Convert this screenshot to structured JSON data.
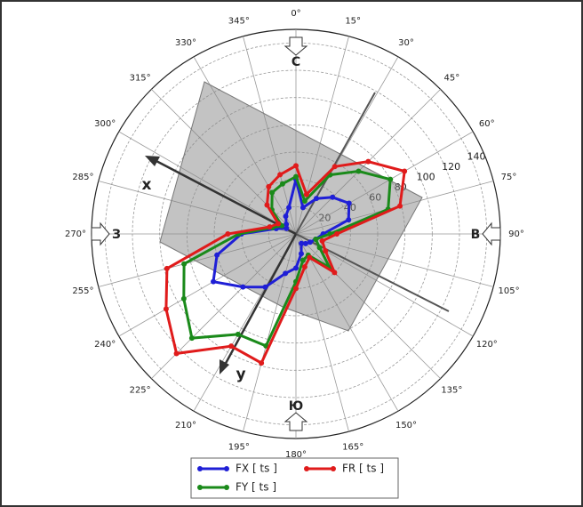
{
  "chart_data": {
    "type": "polar",
    "theta": [
      0,
      15,
      30,
      45,
      60,
      75,
      90,
      105,
      120,
      135,
      150,
      165,
      180,
      195,
      210,
      225,
      240,
      255,
      270,
      285,
      300,
      315,
      330,
      345
    ],
    "series": [
      {
        "name": "FX [ ts ]",
        "color": "#1f1fd6",
        "values": [
          40,
          20,
          30,
          38,
          45,
          40,
          20,
          15,
          12,
          10,
          8,
          15,
          25,
          30,
          45,
          55,
          70,
          60,
          40,
          15,
          8,
          10,
          15,
          20
        ]
      },
      {
        "name": "FY [ ts ]",
        "color": "#1a8a1a",
        "values": [
          42,
          25,
          50,
          65,
          80,
          70,
          25,
          15,
          20,
          35,
          18,
          20,
          35,
          85,
          85,
          108,
          95,
          85,
          42,
          18,
          12,
          25,
          35,
          38
        ]
      },
      {
        "name": "FR [ ts ]",
        "color": "#e01b1b",
        "values": [
          50,
          30,
          57,
          75,
          92,
          79,
          30,
          20,
          25,
          40,
          20,
          25,
          40,
          98,
          95,
          124,
          110,
          98,
          50,
          20,
          15,
          30,
          40,
          45
        ]
      }
    ],
    "rlim": [
      0,
      150
    ],
    "rticks": [
      20,
      40,
      60,
      80,
      100,
      120,
      140
    ],
    "thetaticks": [
      {
        "value": 0,
        "label": "0°"
      },
      {
        "value": 15,
        "label": "15°"
      },
      {
        "value": 30,
        "label": "30°"
      },
      {
        "value": 45,
        "label": "45°"
      },
      {
        "value": 60,
        "label": "60°"
      },
      {
        "value": 75,
        "label": "75°"
      },
      {
        "value": 90,
        "label": "90°"
      },
      {
        "value": 105,
        "label": "105°"
      },
      {
        "value": 120,
        "label": "120°"
      },
      {
        "value": 135,
        "label": "135°"
      },
      {
        "value": 150,
        "label": "150°"
      },
      {
        "value": 165,
        "label": "165°"
      },
      {
        "value": 180,
        "label": "180°"
      },
      {
        "value": 195,
        "label": "195°"
      },
      {
        "value": 210,
        "label": "210°"
      },
      {
        "value": 225,
        "label": "225°"
      },
      {
        "value": 240,
        "label": "240°"
      },
      {
        "value": 255,
        "label": "255°"
      },
      {
        "value": 270,
        "label": "270°"
      },
      {
        "value": 285,
        "label": "285°"
      },
      {
        "value": 300,
        "label": "300°"
      },
      {
        "value": 315,
        "label": "315°"
      },
      {
        "value": 330,
        "label": "330°"
      },
      {
        "value": 345,
        "label": "345°"
      }
    ],
    "direction_labels": {
      "north": "С",
      "east": "В",
      "south": "Ю",
      "west": "З"
    },
    "axis_labels": {
      "x": "x",
      "y": "y"
    },
    "grid": true,
    "legend": "bottom"
  }
}
